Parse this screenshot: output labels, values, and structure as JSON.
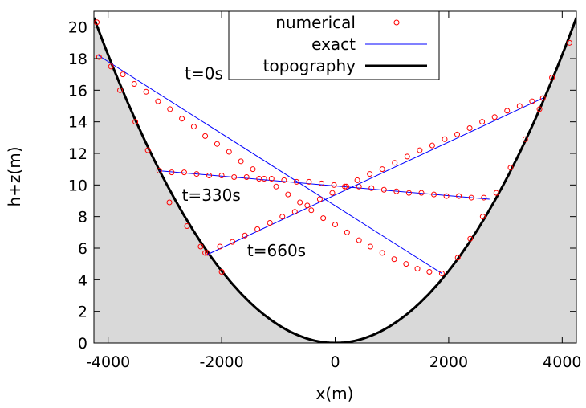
{
  "chart_data": {
    "type": "line",
    "xlabel": "x(m)",
    "ylabel": "h+z(m)",
    "xlim": [
      -4250,
      4250
    ],
    "ylim": [
      0,
      21
    ],
    "x_ticks": [
      -4000,
      -2000,
      0,
      2000,
      4000
    ],
    "x_tick_labels": [
      "-4000",
      "-2000",
      "0",
      "2000",
      "4000"
    ],
    "y_ticks": [
      0,
      2,
      4,
      6,
      8,
      10,
      12,
      14,
      16,
      18,
      20
    ],
    "y_tick_labels": [
      "0",
      "2",
      "4",
      "6",
      "8",
      "10",
      "12",
      "14",
      "16",
      "18",
      "20"
    ],
    "grid": false,
    "legend_placement": "top-center",
    "legend": [
      {
        "label": "numerical",
        "style": "circle-marker",
        "color": "#ff0000"
      },
      {
        "label": "exact",
        "style": "thin-line",
        "color": "#0000ff"
      },
      {
        "label": "topography",
        "style": "thick-line",
        "color": "#000000"
      }
    ],
    "topography": {
      "a": 1.14e-06,
      "x_range": [
        -4250,
        4250
      ],
      "fill_color": "#d9d9d9"
    },
    "annotations": [
      {
        "text": "t=0s",
        "x": -2650,
        "y": 16.7
      },
      {
        "text": "t=330s",
        "x": -2700,
        "y": 9.0
      },
      {
        "text": "t=660s",
        "x": -1550,
        "y": 5.5
      }
    ],
    "series": [
      {
        "name": "t=0s",
        "exact": {
          "x": [
            -4170,
            1880
          ],
          "y": [
            18.2,
            4.4
          ]
        },
        "numerical": {
          "x": [
            -4160,
            -3950,
            -3740,
            -3540,
            -3330,
            -3120,
            -2910,
            -2700,
            -2490,
            -2290,
            -2080,
            -1870,
            -1660,
            -1450,
            -1250,
            -1040,
            -830,
            -620,
            -420,
            -210,
            0,
            210,
            420,
            620,
            830,
            1040,
            1250,
            1450,
            1660,
            1880
          ],
          "y": [
            18.1,
            17.5,
            17.0,
            16.4,
            15.9,
            15.3,
            14.8,
            14.2,
            13.7,
            13.1,
            12.6,
            12.1,
            11.5,
            11.0,
            10.4,
            9.9,
            9.4,
            8.9,
            8.4,
            7.9,
            7.5,
            7.0,
            6.5,
            6.1,
            5.7,
            5.3,
            5.0,
            4.7,
            4.5,
            4.4
          ]
        }
      },
      {
        "name": "t=330s",
        "exact": {
          "x": [
            -3100,
            2720
          ],
          "y": [
            10.9,
            9.1
          ]
        },
        "numerical": {
          "x": [
            -3100,
            -2880,
            -2660,
            -2440,
            -2220,
            -2000,
            -1780,
            -1560,
            -1340,
            -1120,
            -900,
            -680,
            -460,
            -240,
            -20,
            200,
            420,
            640,
            860,
            1080,
            1300,
            1520,
            1740,
            1960,
            2180,
            2400,
            2620
          ],
          "y": [
            10.9,
            10.8,
            10.8,
            10.7,
            10.6,
            10.6,
            10.5,
            10.5,
            10.4,
            10.4,
            10.3,
            10.2,
            10.2,
            10.1,
            10.0,
            9.9,
            9.9,
            9.8,
            9.7,
            9.6,
            9.5,
            9.5,
            9.4,
            9.3,
            9.3,
            9.2,
            9.2
          ]
        }
      },
      {
        "name": "t=660s",
        "exact": {
          "x": [
            -2250,
            3660
          ],
          "y": [
            5.6,
            15.5
          ]
        },
        "numerical": {
          "x": [
            -2250,
            -2030,
            -1810,
            -1590,
            -1370,
            -1150,
            -930,
            -710,
            -490,
            -270,
            -50,
            170,
            390,
            610,
            830,
            1050,
            1270,
            1490,
            1710,
            1930,
            2150,
            2370,
            2590,
            2810,
            3030,
            3250,
            3470,
            3660
          ],
          "y": [
            5.7,
            6.1,
            6.4,
            6.8,
            7.2,
            7.6,
            8.0,
            8.3,
            8.7,
            9.1,
            9.5,
            9.9,
            10.3,
            10.7,
            11.0,
            11.4,
            11.8,
            12.2,
            12.5,
            12.9,
            13.2,
            13.6,
            14.0,
            14.3,
            14.7,
            15.0,
            15.3,
            15.5
          ]
        }
      }
    ],
    "topography_markers": {
      "x": [
        -4200,
        -3790,
        -3520,
        -3300,
        -2920,
        -2610,
        -2370,
        -2290,
        -2000
      ],
      "y": [
        20.3,
        16.0,
        14.0,
        12.2,
        8.9,
        7.4,
        6.1,
        5.7,
        4.5
      ]
    },
    "topography_markers_right": {
      "x": [
        2160,
        2380,
        2600,
        2840,
        3090,
        3350,
        3600,
        3820,
        4130
      ],
      "y": [
        5.4,
        6.6,
        8.0,
        9.5,
        11.1,
        12.9,
        14.8,
        16.8,
        19.0
      ]
    }
  },
  "colors": {
    "numerical": "#ff0000",
    "exact": "#0000ff",
    "topography": "#000000",
    "fill": "#d9d9d9"
  }
}
